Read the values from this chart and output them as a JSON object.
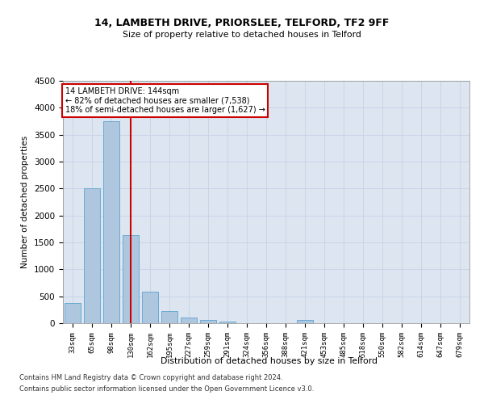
{
  "title1": "14, LAMBETH DRIVE, PRIORSLEE, TELFORD, TF2 9FF",
  "title2": "Size of property relative to detached houses in Telford",
  "xlabel": "Distribution of detached houses by size in Telford",
  "ylabel": "Number of detached properties",
  "footer1": "Contains HM Land Registry data © Crown copyright and database right 2024.",
  "footer2": "Contains public sector information licensed under the Open Government Licence v3.0.",
  "bar_labels": [
    "33sqm",
    "65sqm",
    "98sqm",
    "130sqm",
    "162sqm",
    "195sqm",
    "227sqm",
    "259sqm",
    "291sqm",
    "324sqm",
    "356sqm",
    "388sqm",
    "421sqm",
    "453sqm",
    "485sqm",
    "518sqm",
    "550sqm",
    "582sqm",
    "614sqm",
    "647sqm",
    "679sqm"
  ],
  "bar_values": [
    370,
    2500,
    3750,
    1640,
    580,
    220,
    100,
    60,
    35,
    0,
    0,
    0,
    60,
    0,
    0,
    0,
    0,
    0,
    0,
    0,
    0
  ],
  "bar_color": "#aec6de",
  "bar_edge_color": "#6baad4",
  "grid_color": "#c8d4e8",
  "background_color": "#dde6f0",
  "annotation_line1": "14 LAMBETH DRIVE: 144sqm",
  "annotation_line2": "← 82% of detached houses are smaller (7,538)",
  "annotation_line3": "18% of semi-detached houses are larger (1,627) →",
  "annotation_box_color": "#ffffff",
  "annotation_border_color": "#cc0000",
  "vline_x": 3.0,
  "vline_color": "#cc0000",
  "ylim": [
    0,
    4500
  ],
  "yticks": [
    0,
    500,
    1000,
    1500,
    2000,
    2500,
    3000,
    3500,
    4000,
    4500
  ]
}
